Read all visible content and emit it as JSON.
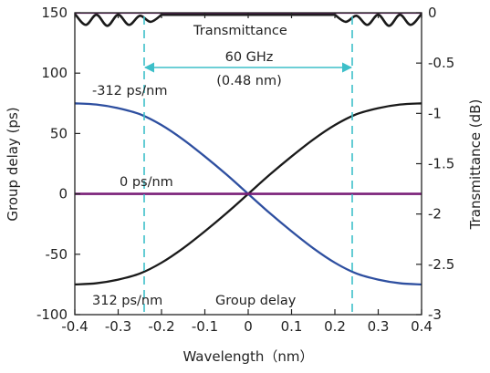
{
  "chart_data": {
    "type": "line",
    "xlabel": "Wavelength（nm）",
    "ylabel": "Group delay (ps)",
    "y2label": "Transmittance (dB)",
    "xlim": [
      -0.4,
      0.4
    ],
    "ylim": [
      -100,
      150
    ],
    "y2lim": [
      -3,
      0
    ],
    "xticks": [
      -0.4,
      -0.3,
      -0.2,
      -0.1,
      0,
      0.1,
      0.2,
      0.3,
      0.4
    ],
    "xtick_labels": [
      "-0.4",
      "-0.3",
      "-0.2",
      "-0.1",
      "0",
      "0.1",
      "0.2",
      "0.3",
      "0.4"
    ],
    "yticks": [
      -100,
      -50,
      0,
      50,
      100,
      150
    ],
    "ytick_labels": [
      "-100",
      "-50",
      "0",
      "50",
      "100",
      "150"
    ],
    "y2ticks": [
      -3,
      -2.5,
      -2,
      -1.5,
      -1,
      -0.5,
      0
    ],
    "y2tick_labels": [
      "-3",
      "-2.5",
      "-2",
      "-1.5",
      "-1",
      "-0.5",
      "0"
    ],
    "grid": false,
    "series": [
      {
        "label": "-312 ps/nm",
        "axis": "left",
        "color": "#2e4fa0",
        "x": [
          -0.4,
          -0.35,
          -0.3,
          -0.25,
          -0.2,
          -0.15,
          -0.1,
          -0.05,
          0,
          0.05,
          0.1,
          0.15,
          0.2,
          0.25,
          0.3,
          0.35,
          0.4
        ],
        "y": [
          75,
          74,
          71,
          66,
          57,
          45,
          31,
          16,
          0,
          -16,
          -31,
          -45,
          -57,
          -66,
          -71,
          -74,
          -75
        ]
      },
      {
        "label": "312 ps/nm",
        "axis": "left",
        "color": "#1a1a1a",
        "x": [
          -0.4,
          -0.35,
          -0.3,
          -0.25,
          -0.2,
          -0.15,
          -0.1,
          -0.05,
          0,
          0.05,
          0.1,
          0.15,
          0.2,
          0.25,
          0.3,
          0.35,
          0.4
        ],
        "y": [
          -75,
          -74,
          -71,
          -66,
          -57,
          -45,
          -31,
          -16,
          0,
          16,
          31,
          45,
          57,
          66,
          71,
          74,
          75
        ]
      },
      {
        "label": "0 ps/nm",
        "axis": "left",
        "color": "#7a1f78",
        "x": [
          -0.4,
          0.4
        ],
        "y": [
          0,
          0
        ]
      },
      {
        "label": "Transmittance",
        "axis": "right",
        "color": "#1a1a1a",
        "x": [
          -0.4,
          -0.375,
          -0.35,
          -0.325,
          -0.3,
          -0.275,
          -0.25,
          -0.225,
          -0.2,
          0.2,
          0.225,
          0.25,
          0.275,
          0.3,
          0.325,
          0.35,
          0.375,
          0.4
        ],
        "y": [
          -0.01,
          -0.12,
          -0.02,
          -0.13,
          -0.02,
          -0.12,
          -0.03,
          -0.09,
          -0.02,
          -0.02,
          -0.09,
          -0.03,
          -0.12,
          -0.02,
          -0.13,
          -0.02,
          -0.12,
          -0.01
        ]
      }
    ],
    "zero_line_color": "#7a1f78",
    "annotations": {
      "transmittance": "Transmittance",
      "bandwidth": "60 GHz",
      "bandwidth_nm": "(0.48 nm)",
      "neg_dispersion": "-312 ps/nm",
      "zero_dispersion": "0 ps/nm",
      "pos_dispersion": "312 ps/nm",
      "group_delay": "Group delay"
    },
    "markers": {
      "left_x": -0.24,
      "right_x": 0.24,
      "color": "#3dbfc9"
    }
  }
}
